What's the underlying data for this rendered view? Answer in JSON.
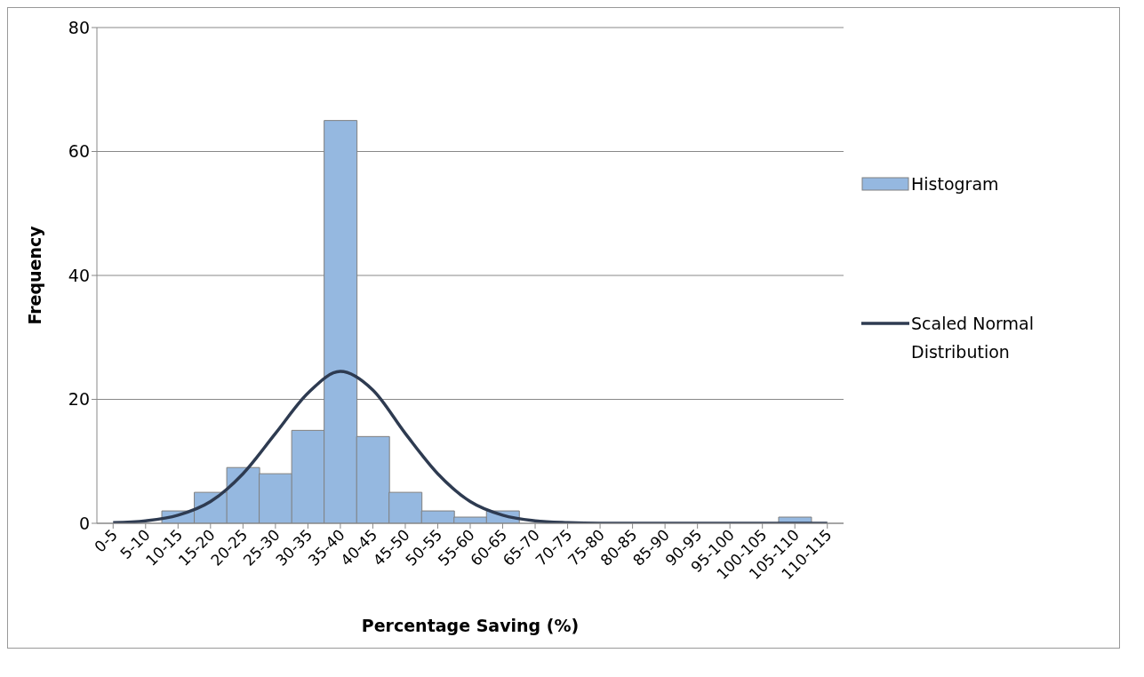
{
  "chart_data": {
    "type": "bar",
    "xlabel": "Percentage Saving (%)",
    "ylabel": "Frequency",
    "categories": [
      "0-5",
      "5-10",
      "10-15",
      "15-20",
      "20-25",
      "25-30",
      "30-35",
      "35-40",
      "40-45",
      "45-50",
      "50-55",
      "55-60",
      "60-65",
      "65-70",
      "70-75",
      "75-80",
      "80-85",
      "85-90",
      "90-95",
      "95-100",
      "100-105",
      "105-110",
      "110-115"
    ],
    "series": [
      {
        "name": "Histogram",
        "color": "#95b8e0",
        "values": [
          0,
          0,
          2,
          5,
          9,
          8,
          15,
          65,
          14,
          5,
          2,
          1,
          2,
          0,
          0,
          0,
          0,
          0,
          0,
          0,
          0,
          1,
          0
        ]
      },
      {
        "name": "Scaled Normal Distribution",
        "type": "line",
        "color": "#2e3b51",
        "values": [
          0.1,
          0.4,
          1.3,
          3.5,
          8,
          14.5,
          21,
          24.5,
          21.5,
          14.5,
          8,
          3.5,
          1.3,
          0.4,
          0.1,
          0,
          0,
          0,
          0,
          0,
          0,
          0,
          0
        ]
      }
    ],
    "ylim": [
      0,
      80
    ],
    "yticks": [
      0,
      20,
      40,
      60,
      80
    ],
    "grid": "y",
    "legend": "right",
    "marker": "none"
  }
}
